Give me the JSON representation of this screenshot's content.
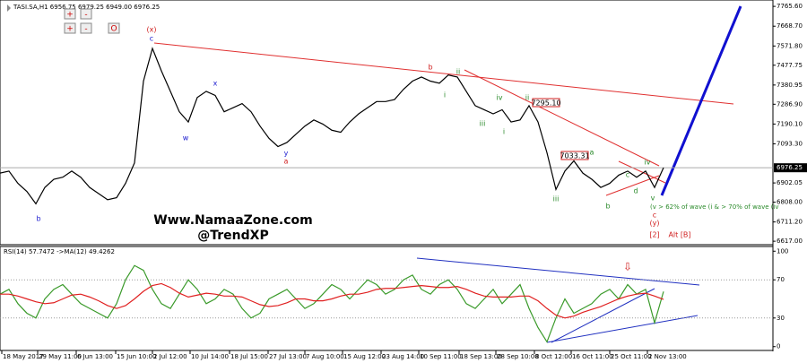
{
  "chart_data": [
    {
      "type": "line",
      "title": "TASI.SA,H1  6956.75 6979.25 6949.00 6976.25",
      "xlim": [
        0,
        86
      ],
      "xticks": [
        {
          "value": 0.2,
          "label": "18 May 2017"
        },
        {
          "value": 4.2,
          "label": "29 May 11:00"
        },
        {
          "value": 8.5,
          "label": "6 Jun 13:00"
        },
        {
          "value": 12.9,
          "label": "15 Jun 10:00"
        },
        {
          "value": 17,
          "label": "2 Jul 12:00"
        },
        {
          "value": 21.2,
          "label": "10 Jul 14:00"
        },
        {
          "value": 25.6,
          "label": "18 Jul 15:00"
        },
        {
          "value": 29.9,
          "label": "27 Jul 13:00"
        },
        {
          "value": 34,
          "label": "7 Aug 10:00"
        },
        {
          "value": 38.2,
          "label": "15 Aug 12:00"
        },
        {
          "value": 42.5,
          "label": "23 Aug 14:00"
        },
        {
          "value": 46.7,
          "label": "10 Sep 11:00"
        },
        {
          "value": 51.2,
          "label": "18 Sep 13:00"
        },
        {
          "value": 55.3,
          "label": "28 Sep 10:00"
        },
        {
          "value": 59.6,
          "label": "8 Oct 12:00"
        },
        {
          "value": 63.7,
          "label": "16 Oct 11:00"
        },
        {
          "value": 68,
          "label": "25 Oct 11:00"
        },
        {
          "value": 72.2,
          "label": "2 Nov 13:00"
        }
      ],
      "ylim": [
        6600,
        7788
      ],
      "yticks": [
        {
          "value": 7765.6,
          "label": "7765.60"
        },
        {
          "value": 7668.7,
          "label": "7668.70"
        },
        {
          "value": 7571.8,
          "label": "7571.80"
        },
        7477.75,
        7380.95,
        {
          "value": 7286.9,
          "label": "7286.90"
        },
        {
          "value": 7190.1,
          "label": "7190.10"
        },
        {
          "value": 7093.3,
          "label": "7093.30"
        },
        6902.05,
        {
          "value": 6808,
          "label": "6808.00"
        },
        {
          "value": 6711.2,
          "label": "6711.20"
        },
        {
          "value": 6617,
          "label": "6617.00"
        }
      ],
      "last_price": 6976.25,
      "series": [
        {
          "name": "TASI.SA",
          "color": "#000000",
          "values": [
            6950,
            6960,
            6900,
            6860,
            6800,
            6880,
            6920,
            6930,
            6960,
            6930,
            6880,
            6850,
            6820,
            6830,
            6900,
            7000,
            7400,
            7560,
            7450,
            7350,
            7250,
            7200,
            7320,
            7350,
            7330,
            7250,
            7270,
            7290,
            7250,
            7180,
            7120,
            7080,
            7100,
            7140,
            7180,
            7210,
            7190,
            7160,
            7150,
            7200,
            7240,
            7270,
            7300,
            7300,
            7310,
            7360,
            7400,
            7420,
            7400,
            7390,
            7430,
            7420,
            7350,
            7280,
            7260,
            7240,
            7260,
            7200,
            7210,
            7280,
            7200,
            7050,
            6870,
            6960,
            7010,
            6950,
            6920,
            6880,
            6900,
            6940,
            6960,
            6930,
            6960,
            6880,
            6976.25
          ]
        }
      ],
      "annotations": [
        "(x)",
        "c",
        "b",
        "w",
        "x",
        "y",
        "a",
        "b",
        "i",
        "ii",
        "iii",
        "iv",
        "i",
        "ii",
        "iii",
        "a",
        "b",
        "c",
        "d",
        "iv",
        "v",
        "c",
        "(y)",
        "(v > 62% of wave (i  & > 70% of wave (iv",
        "[2]",
        "Alt [B]",
        "7295.10",
        "7033.31",
        "Www.NamaaZone.com",
        "@TrendXP"
      ],
      "buttons": [
        "+",
        "-",
        "+",
        "-",
        "O"
      ]
    },
    {
      "type": "line",
      "title": "RSI(14) 57.7472  ->MA(12) 49.4262",
      "xlim": [
        0,
        86
      ],
      "ylim": [
        -4,
        104
      ],
      "yticks": [
        100,
        70,
        30,
        0
      ],
      "marker": "⇩",
      "series": [
        {
          "name": "RSI(14)",
          "color": "#3a9a2a",
          "values": [
            55,
            60,
            45,
            35,
            30,
            50,
            60,
            65,
            55,
            45,
            40,
            35,
            30,
            45,
            70,
            85,
            80,
            60,
            45,
            40,
            55,
            70,
            60,
            45,
            50,
            60,
            55,
            40,
            30,
            35,
            50,
            55,
            60,
            50,
            40,
            45,
            55,
            65,
            60,
            50,
            60,
            70,
            65,
            55,
            60,
            70,
            75,
            60,
            55,
            65,
            70,
            60,
            45,
            40,
            50,
            60,
            45,
            55,
            65,
            40,
            20,
            5,
            30,
            50,
            35,
            40,
            45,
            55,
            60,
            50,
            65,
            55,
            60,
            25,
            57.7472
          ]
        },
        {
          "name": "MA(12)",
          "color": "#e02020",
          "values": [
            55,
            55,
            53,
            50,
            47,
            45,
            46,
            50,
            54,
            55,
            52,
            48,
            43,
            40,
            43,
            50,
            58,
            64,
            66,
            62,
            56,
            52,
            54,
            56,
            55,
            53,
            53,
            52,
            48,
            44,
            42,
            43,
            46,
            50,
            50,
            48,
            48,
            50,
            53,
            55,
            55,
            57,
            60,
            61,
            61,
            62,
            63,
            64,
            63,
            62,
            62,
            63,
            60,
            56,
            53,
            52,
            52,
            52,
            53,
            53,
            48,
            40,
            33,
            30,
            32,
            36,
            39,
            42,
            46,
            50,
            53,
            55,
            56,
            53,
            49.4262
          ]
        }
      ]
    }
  ]
}
